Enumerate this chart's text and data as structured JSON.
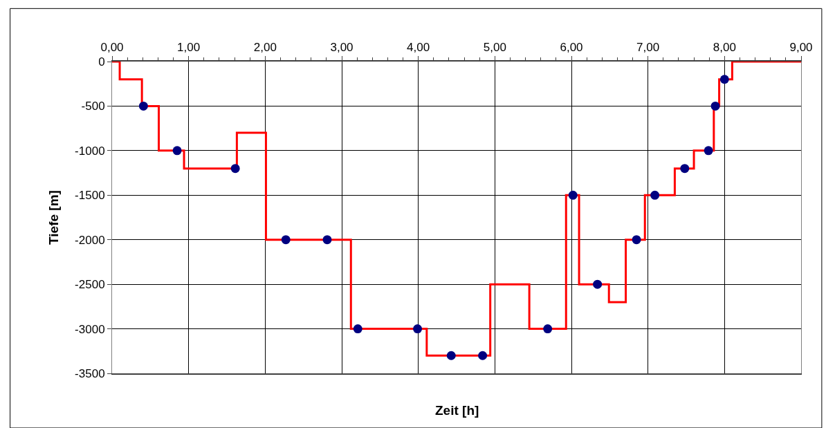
{
  "chart_data": {
    "type": "step",
    "xlabel": "Zeit [h]",
    "ylabel": "Tiefe [m]",
    "xlim": [
      0,
      9
    ],
    "ylim": [
      -3500,
      0
    ],
    "xticks": [
      {
        "value": 0,
        "label": "0,00"
      },
      {
        "value": 1,
        "label": "1,00"
      },
      {
        "value": 2,
        "label": "2,00"
      },
      {
        "value": 3,
        "label": "3,00"
      },
      {
        "value": 4,
        "label": "4,00"
      },
      {
        "value": 5,
        "label": "5,00"
      },
      {
        "value": 6,
        "label": "6,00"
      },
      {
        "value": 7,
        "label": "7,00"
      },
      {
        "value": 8,
        "label": "8,00"
      },
      {
        "value": 9,
        "label": "9,00"
      }
    ],
    "yticks": [
      0,
      -500,
      -1000,
      -1500,
      -2000,
      -2500,
      -3000,
      -3500
    ],
    "grid": true,
    "series": [
      {
        "color": "#ff0000",
        "marker": "none",
        "line_style": "solid",
        "x": [
          0,
          0.1,
          0.39,
          0.61,
          0.94,
          1.63,
          2.01,
          3.12,
          4.11,
          4.94,
          5.45,
          5.93,
          6.1,
          6.49,
          6.71,
          6.96,
          7.35,
          7.6,
          7.86,
          7.93,
          8.1,
          9
        ],
        "values": [
          0,
          -200,
          -500,
          -1000,
          -1200,
          -800,
          -2000,
          -3000,
          -3300,
          -2500,
          -3000,
          -1500,
          -2500,
          -2700,
          -2000,
          -1500,
          -1200,
          -1000,
          -500,
          -200,
          0,
          0
        ]
      },
      {
        "type": "scatter",
        "color": "#000080",
        "marker": "circle",
        "x": [
          0.41,
          0.85,
          1.61,
          2.27,
          2.81,
          3.21,
          3.99,
          4.43,
          4.84,
          5.69,
          6.02,
          6.34,
          6.85,
          7.09,
          7.48,
          7.79,
          7.88,
          8.0
        ],
        "values": [
          -500,
          -1000,
          -1200,
          -2000,
          -2000,
          -3000,
          -3000,
          -3300,
          -3300,
          -3000,
          -1500,
          -2500,
          -2000,
          -1500,
          -1200,
          -1000,
          -500,
          -200
        ]
      }
    ]
  }
}
